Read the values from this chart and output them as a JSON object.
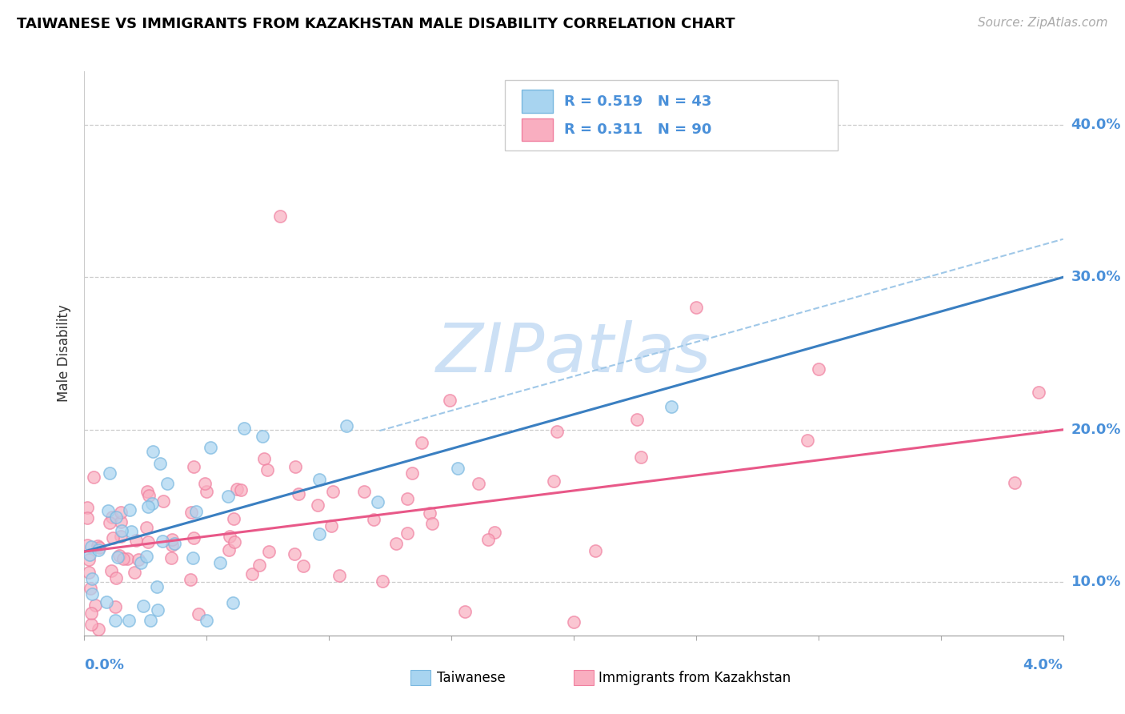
{
  "title": "TAIWANESE VS IMMIGRANTS FROM KAZAKHSTAN MALE DISABILITY CORRELATION CHART",
  "source": "Source: ZipAtlas.com",
  "ylabel": "Male Disability",
  "taiwanese_color": "#a8d4f0",
  "kazakh_color": "#f9aec0",
  "taiwanese_edge": "#7ab8e0",
  "kazakh_edge": "#f080a0",
  "trendline_tw_color": "#3a7fc1",
  "trendline_kz_color": "#e85888",
  "dashed_color": "#a0c8e8",
  "r_tw": 0.519,
  "n_tw": 43,
  "r_kz": 0.311,
  "n_kz": 90,
  "xmin": 0.0,
  "xmax": 0.04,
  "ymin": 0.065,
  "ymax": 0.435,
  "yticks": [
    0.1,
    0.2,
    0.3,
    0.4
  ],
  "ytick_labels": [
    "10.0%",
    "20.0%",
    "30.0%",
    "40.0%"
  ],
  "label_color": "#4a90d9",
  "watermark_color": "#ddeeff",
  "title_fontsize": 13,
  "source_fontsize": 11,
  "tick_label_fontsize": 13,
  "legend_fontsize": 13
}
